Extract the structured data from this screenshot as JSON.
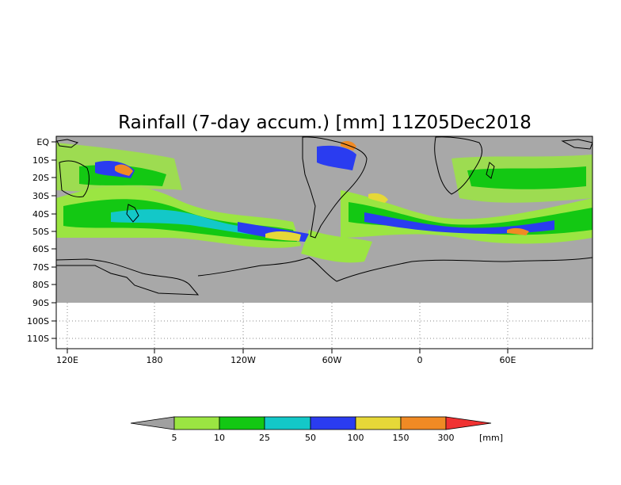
{
  "title": "Rainfall (7-day accum.) [mm] 11Z05Dec2018",
  "map": {
    "lat_labels": [
      "EQ",
      "10S",
      "20S",
      "30S",
      "40S",
      "50S",
      "60S",
      "70S",
      "80S",
      "90S",
      "100S",
      "110S"
    ],
    "lon_labels": [
      "120E",
      "180",
      "120W",
      "60W",
      "0",
      "60E"
    ],
    "colors": {
      "ocean": "#a8a8a8",
      "coast": "#000000",
      "grid": "#888888"
    }
  },
  "colorbar": {
    "unit": "[mm]",
    "labels": [
      "5",
      "10",
      "25",
      "50",
      "100",
      "150",
      "300"
    ],
    "colors": [
      "#a0a0a0",
      "#9be542",
      "#13c813",
      "#13c8c8",
      "#2a3cf0",
      "#e6d838",
      "#f08a24",
      "#f03232"
    ]
  }
}
